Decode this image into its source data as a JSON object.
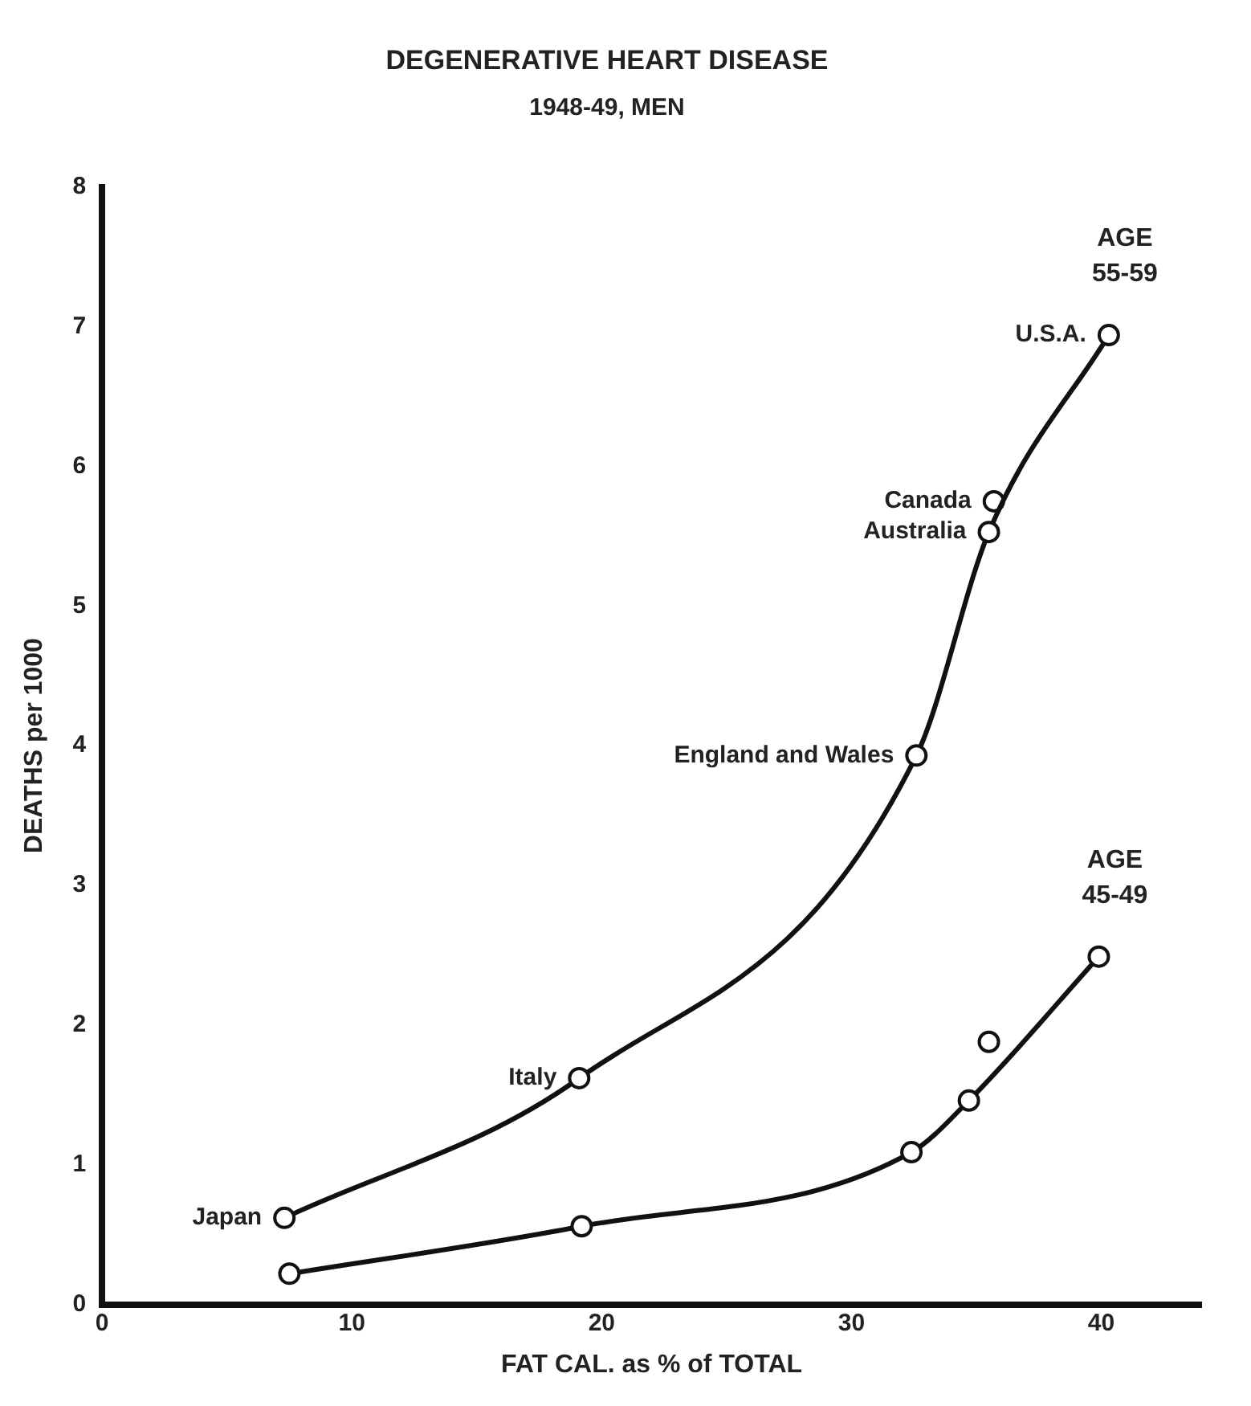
{
  "chart_data": {
    "type": "line",
    "title": "DEGENERATIVE HEART DISEASE",
    "subtitle": "1948-49, MEN",
    "xlabel": "FAT CAL. as % of TOTAL",
    "ylabel": "DEATHS per 1000",
    "xlim": [
      0,
      44
    ],
    "xticks": [
      0,
      10,
      20,
      30,
      40
    ],
    "ylim": [
      0,
      8
    ],
    "yticks": [
      0,
      1,
      2,
      3,
      4,
      5,
      6,
      7,
      8
    ],
    "marker": "circle",
    "line_style": "solid",
    "series": [
      {
        "name": "AGE 55-59",
        "type": "line",
        "color": "#111111",
        "x": [
          7.3,
          19.1,
          32.6,
          35.5,
          40.3
        ],
        "values": [
          0.62,
          1.62,
          3.93,
          5.53,
          6.94
        ]
      },
      {
        "type": "scatter",
        "color": "#111111",
        "x": [
          35.7
        ],
        "values": [
          5.75
        ]
      },
      {
        "name": "AGE 45-49",
        "type": "line",
        "color": "#111111",
        "x": [
          7.5,
          19.2,
          32.4,
          34.7,
          39.9
        ],
        "values": [
          0.22,
          0.56,
          1.09,
          1.46,
          2.49
        ]
      },
      {
        "type": "scatter",
        "color": "#111111",
        "x": [
          35.5
        ],
        "values": [
          1.88
        ]
      }
    ],
    "annotations": [
      {
        "text": "Japan",
        "x": 7.3,
        "y": 0.62
      },
      {
        "text": "Italy",
        "x": 19.1,
        "y": 1.62
      },
      {
        "text": "England and Wales",
        "x": 32.6,
        "y": 3.93
      },
      {
        "text": "Australia",
        "x": 35.5,
        "y": 5.53
      },
      {
        "text": "Canada",
        "x": 35.7,
        "y": 5.75
      },
      {
        "text": "U.S.A.",
        "x": 40.3,
        "y": 6.94
      }
    ]
  }
}
